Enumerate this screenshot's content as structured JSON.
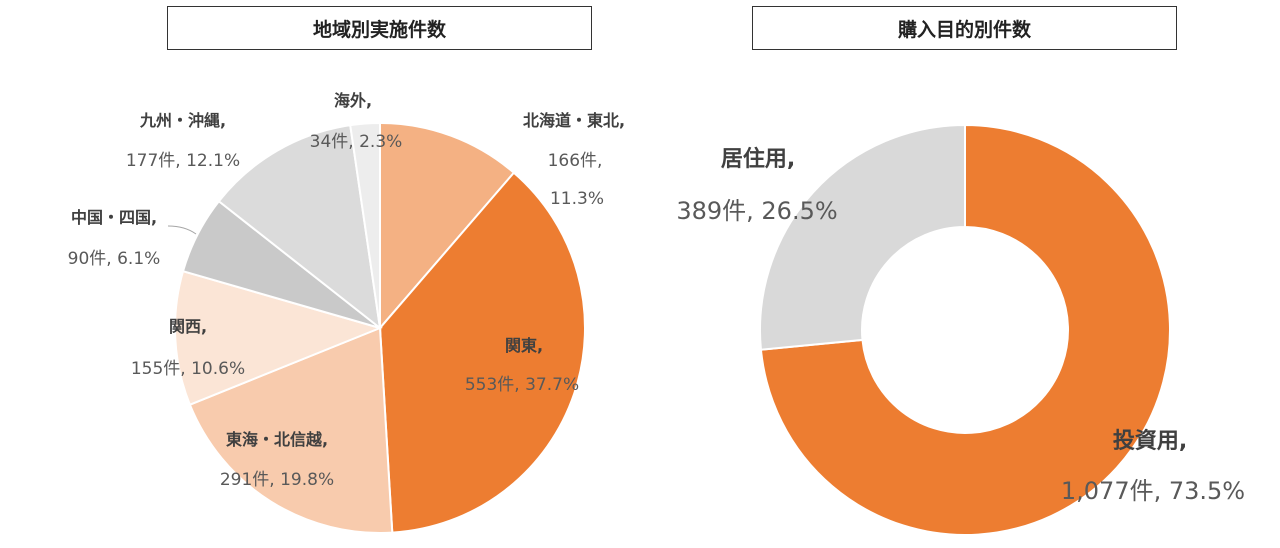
{
  "chart_data": [
    {
      "type": "pie",
      "title": "地域別実施件数",
      "series": [
        {
          "labels": [
            "北海道・東北",
            "関東",
            "東海・北信越",
            "関西",
            "中国・四国",
            "九州・沖縄",
            "海外"
          ],
          "counts": [
            166,
            553,
            291,
            155,
            90,
            177,
            34
          ],
          "percents": [
            11.3,
            37.7,
            19.8,
            10.6,
            6.1,
            12.1,
            2.3
          ],
          "value_labels": [
            "166件,",
            "553件, 37.7%",
            "291件, 19.8%",
            "155件, 10.6%",
            "90件, 6.1%",
            "177件, 12.1%",
            "34件, 2.3%"
          ],
          "colors": [
            "#F4B183",
            "#ED7D31",
            "#F8CBAD",
            "#FBE5D6",
            "#C9C9C9",
            "#DBDBDB",
            "#EDEDED"
          ]
        }
      ],
      "extra_label": "11.3%"
    },
    {
      "type": "pie",
      "subtype": "donut",
      "title": "購入目的別件数",
      "series": [
        {
          "labels": [
            "投資用",
            "居住用"
          ],
          "counts": [
            1077,
            389
          ],
          "percents": [
            73.5,
            26.5
          ],
          "value_labels": [
            "1,077件, 73.5%",
            "389件, 26.5%"
          ],
          "colors": [
            "#ED7D31",
            "#D9D9D9"
          ]
        }
      ]
    }
  ]
}
